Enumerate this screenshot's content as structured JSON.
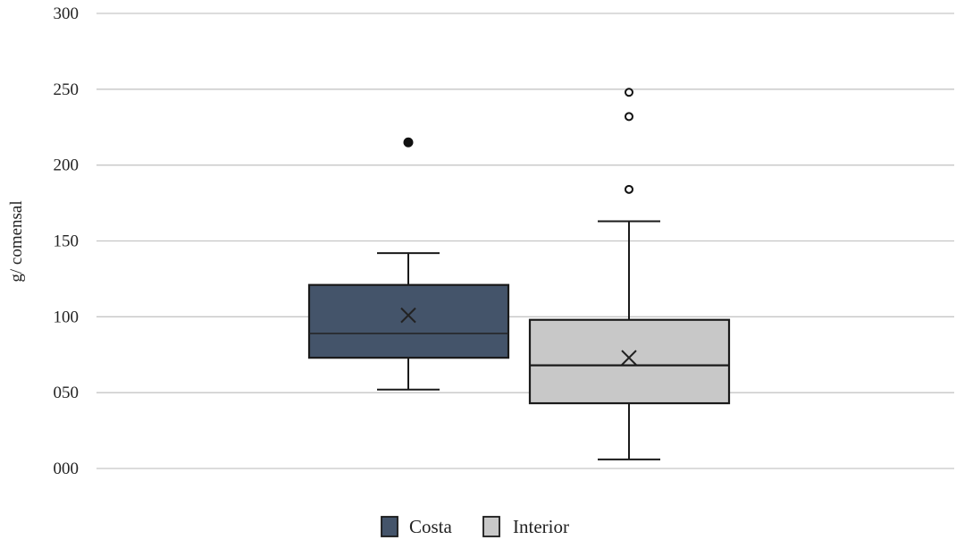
{
  "chart_data": {
    "type": "box",
    "ylabel": "g/ comensal",
    "ylim": [
      0,
      300
    ],
    "yticks": [
      0,
      50,
      100,
      150,
      200,
      250,
      300
    ],
    "ytick_labels": [
      "000",
      "050",
      "100",
      "150",
      "200",
      "250",
      "300"
    ],
    "grid": true,
    "legend_position": "bottom",
    "series": [
      {
        "name": "Costa",
        "color": "#44546a",
        "whisker_low": 52,
        "q1": 73,
        "median": 89,
        "q3": 121,
        "whisker_high": 142,
        "mean": 101,
        "outliers": [
          215
        ],
        "outlier_style": "filled"
      },
      {
        "name": "Interior",
        "color": "#c8c8c8",
        "whisker_low": 6,
        "q1": 43,
        "median": 68,
        "q3": 98,
        "whisker_high": 163,
        "mean": 73,
        "outliers": [
          184,
          232,
          248
        ],
        "outlier_style": "hollow"
      }
    ]
  }
}
